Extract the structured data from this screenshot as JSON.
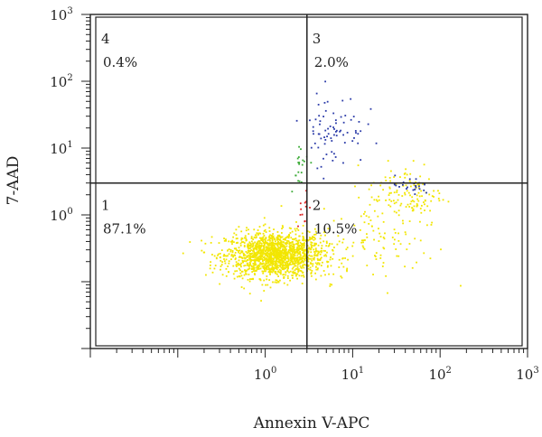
{
  "chart_data": {
    "type": "scatter",
    "title": "",
    "xlabel": "Annexin V-APC",
    "ylabel": "7-AAD",
    "x_scale": "log",
    "y_scale": "log",
    "xlim": [
      0.01,
      1000
    ],
    "ylim": [
      0.01,
      1000
    ],
    "x_ticks": [
      {
        "base": "10",
        "exp": "0",
        "value": 1
      },
      {
        "base": "10",
        "exp": "1",
        "value": 10
      },
      {
        "base": "10",
        "exp": "2",
        "value": 100
      },
      {
        "base": "10",
        "exp": "3",
        "value": 1000
      }
    ],
    "y_ticks": [
      {
        "base": "10",
        "exp": "0",
        "value": 1
      },
      {
        "base": "10",
        "exp": "1",
        "value": 10
      },
      {
        "base": "10",
        "exp": "2",
        "value": 100
      },
      {
        "base": "10",
        "exp": "3",
        "value": 1000
      }
    ],
    "gate": {
      "x": 3.0,
      "y": 3.0
    },
    "grid": false,
    "quadrants": [
      {
        "id": "4",
        "percent": "0.4%",
        "position": "top-left"
      },
      {
        "id": "3",
        "percent": "2.0%",
        "position": "top-right"
      },
      {
        "id": "1",
        "percent": "87.1%",
        "position": "bottom-left"
      },
      {
        "id": "2",
        "percent": "10.5%",
        "position": "bottom-right"
      }
    ],
    "series": [
      {
        "color": "#f2e600",
        "clusters": [
          {
            "center": [
              1.3,
              0.25
            ],
            "spread": [
              0.28,
              0.17
            ],
            "count": 1600
          },
          {
            "center": [
              40,
              2.0
            ],
            "spread": [
              0.22,
              0.24
            ],
            "count": 140
          },
          {
            "center": [
              20,
              0.35
            ],
            "spread": [
              0.33,
              0.28
            ],
            "count": 90
          }
        ]
      },
      {
        "color": "#2a3aa8",
        "clusters": [
          {
            "center": [
              6,
              20
            ],
            "spread": [
              0.18,
              0.28
            ],
            "count": 75
          },
          {
            "center": [
              45,
              2.6
            ],
            "spread": [
              0.12,
              0.08
            ],
            "count": 22
          }
        ]
      },
      {
        "color": "#3aaa35",
        "clusters": [
          {
            "center": [
              2.5,
              6
            ],
            "spread": [
              0.06,
              0.18
            ],
            "count": 20
          }
        ]
      },
      {
        "color": "#dd2222",
        "clusters": [
          {
            "center": [
              2.7,
              1.3
            ],
            "spread": [
              0.03,
              0.16
            ],
            "count": 12
          }
        ]
      }
    ]
  }
}
